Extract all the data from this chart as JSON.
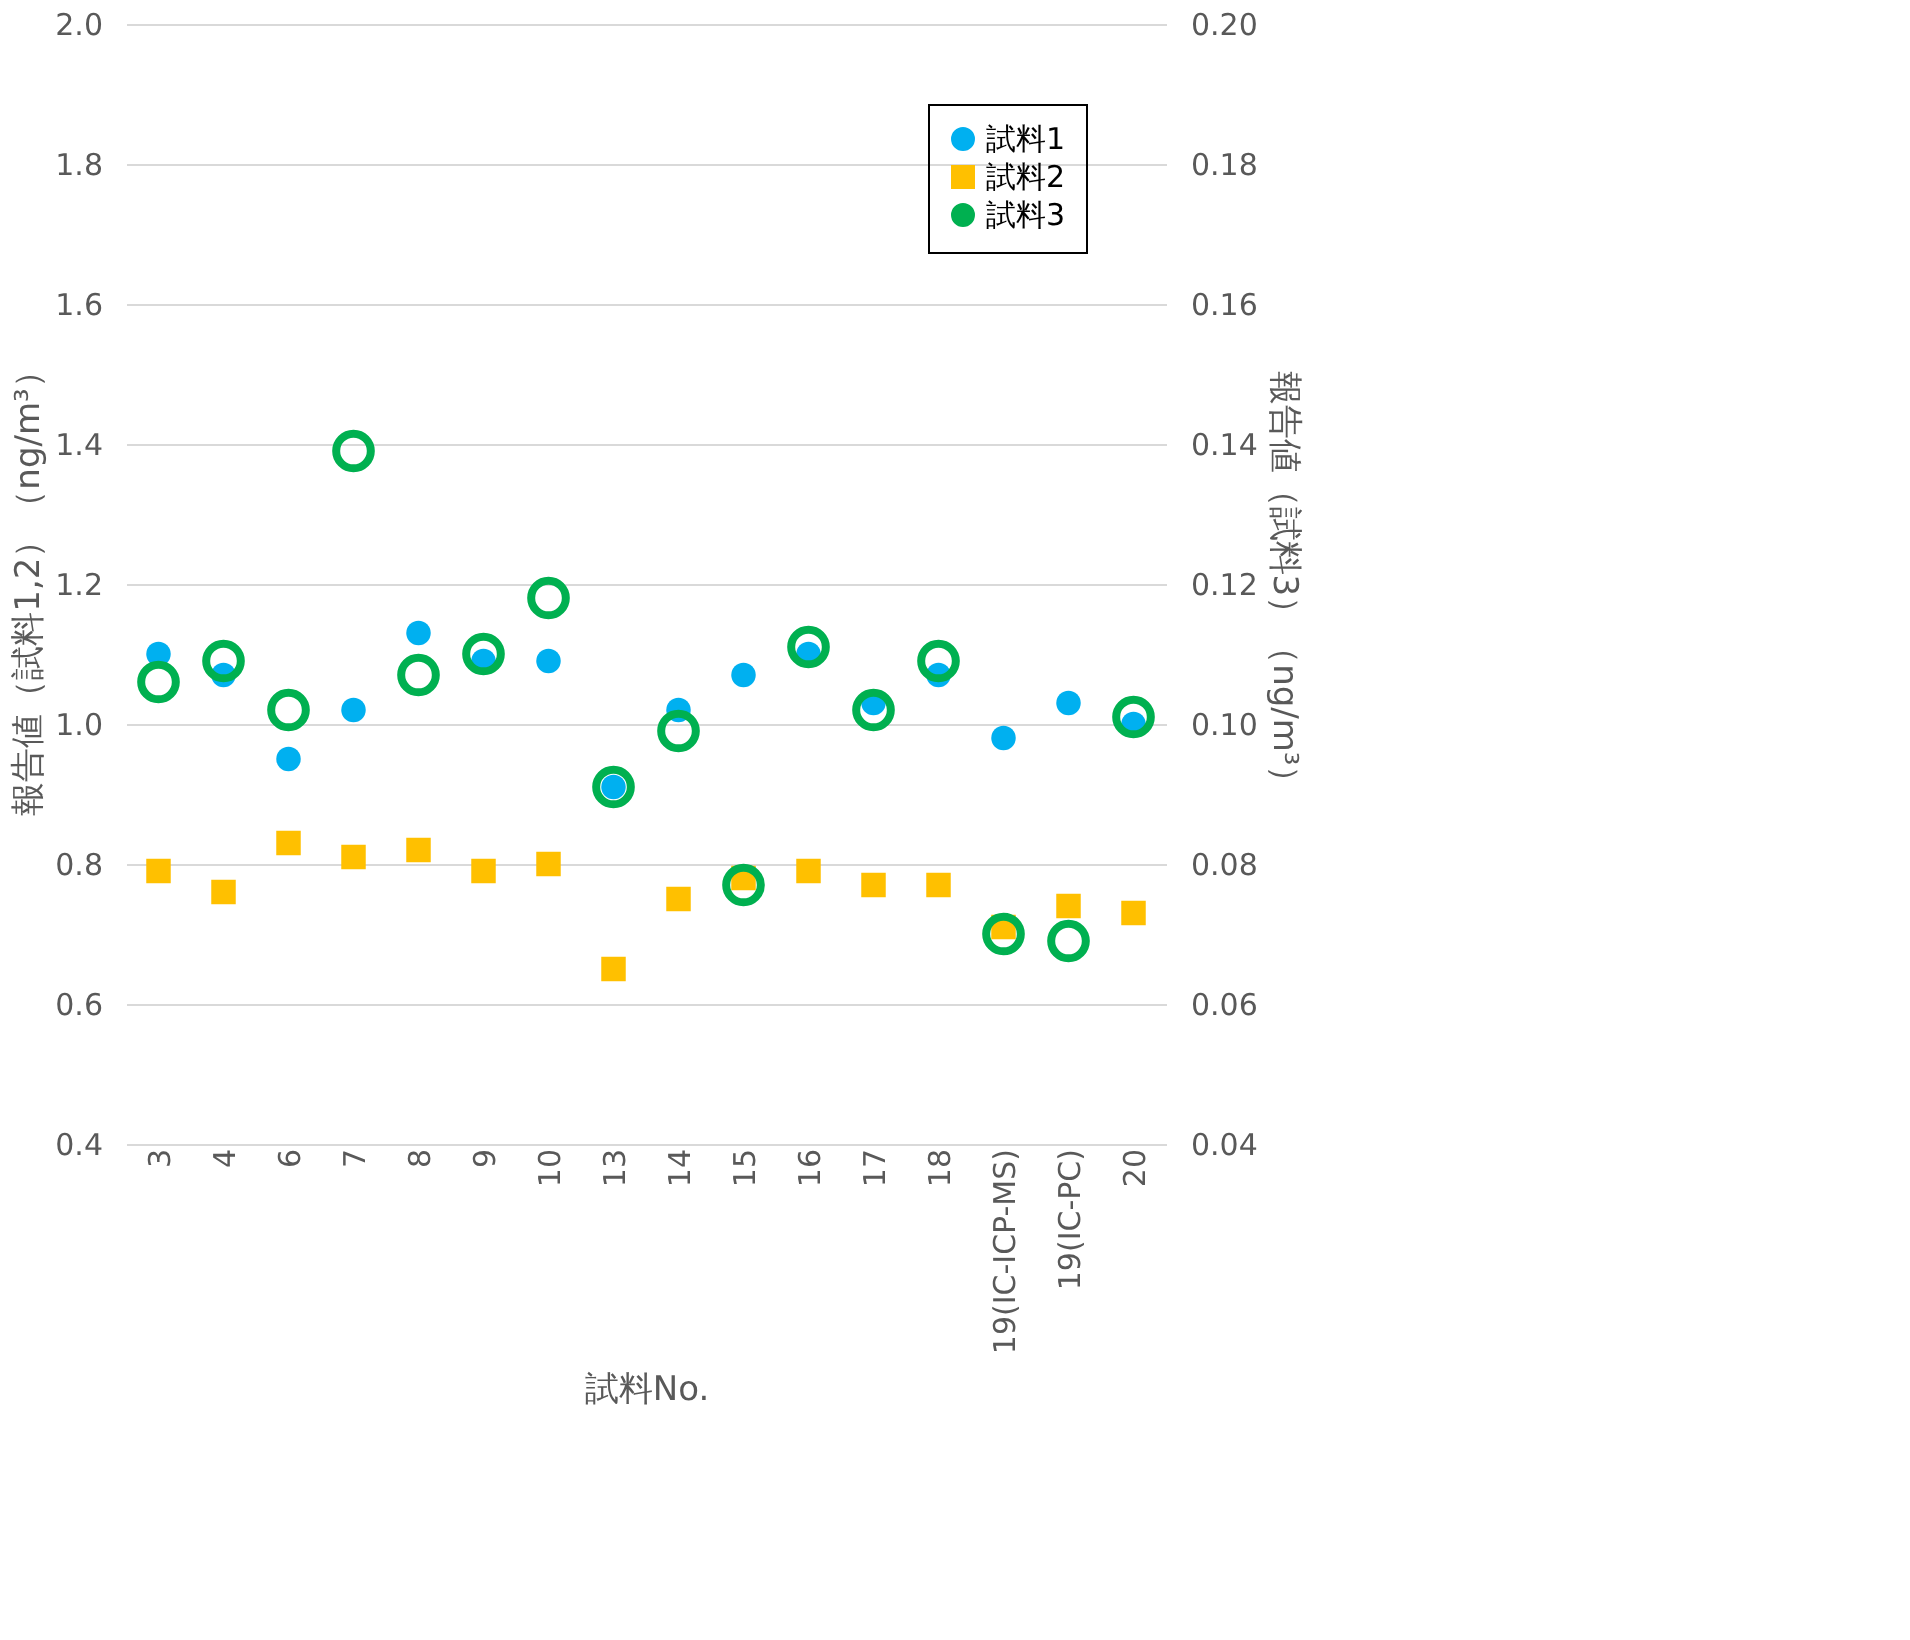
{
  "chart_data": {
    "type": "scatter",
    "xlabel": "試料No.",
    "ylabel": "報告値（試料1,2）（ng/m³）",
    "y2label": "報告値（試料3）（ng/m³）",
    "categories": [
      "3",
      "4",
      "6",
      "7",
      "8",
      "9",
      "10",
      "13",
      "14",
      "15",
      "16",
      "17",
      "18",
      "19(IC-ICP-MS)",
      "19(IC-PC)",
      "20"
    ],
    "series": [
      {
        "name": "試料1",
        "color": "#00b0f0",
        "marker": "circle",
        "values": [
          1.1,
          1.07,
          0.95,
          1.02,
          1.13,
          1.09,
          1.09,
          0.91,
          1.02,
          1.07,
          1.1,
          1.03,
          1.07,
          0.98,
          1.03,
          1.0
        ]
      },
      {
        "name": "試料2",
        "color": "#ffc000",
        "marker": "square",
        "values": [
          0.79,
          0.76,
          0.83,
          0.81,
          0.82,
          0.79,
          0.8,
          0.65,
          0.75,
          0.78,
          0.79,
          0.77,
          0.77,
          0.71,
          0.74,
          0.73
        ]
      },
      {
        "name": "試料3",
        "color": "#00b050",
        "marker": "circle",
        "axis": "y2",
        "values": [
          0.106,
          0.109,
          0.102,
          0.139,
          0.107,
          0.11,
          0.118,
          0.091,
          0.099,
          0.077,
          0.111,
          0.102,
          0.109,
          0.07,
          0.069,
          0.101
        ]
      }
    ],
    "ylim": [
      0.4,
      2.0
    ],
    "yticks": [
      {
        "value": 0.4,
        "label": "0.4"
      },
      {
        "value": 0.6,
        "label": "0.6"
      },
      {
        "value": 0.8,
        "label": "0.8"
      },
      {
        "value": 1.0,
        "label": "1.0"
      },
      {
        "value": 1.2,
        "label": "1.2"
      },
      {
        "value": 1.4,
        "label": "1.4"
      },
      {
        "value": 1.6,
        "label": "1.6"
      },
      {
        "value": 1.8,
        "label": "1.8"
      },
      {
        "value": 2.0,
        "label": "2.0"
      }
    ],
    "y2lim": [
      0.04,
      0.2
    ],
    "y2ticks": [
      {
        "value": 0.04,
        "label": "0.04"
      },
      {
        "value": 0.06,
        "label": "0.06"
      },
      {
        "value": 0.08,
        "label": "0.08"
      },
      {
        "value": 0.1,
        "label": "0.10"
      },
      {
        "value": 0.12,
        "label": "0.12"
      },
      {
        "value": 0.14,
        "label": "0.14"
      },
      {
        "value": 0.16,
        "label": "0.16"
      },
      {
        "value": 0.18,
        "label": "0.18"
      },
      {
        "value": 0.2,
        "label": "0.20"
      }
    ],
    "grid": "y",
    "legend": "top right"
  }
}
